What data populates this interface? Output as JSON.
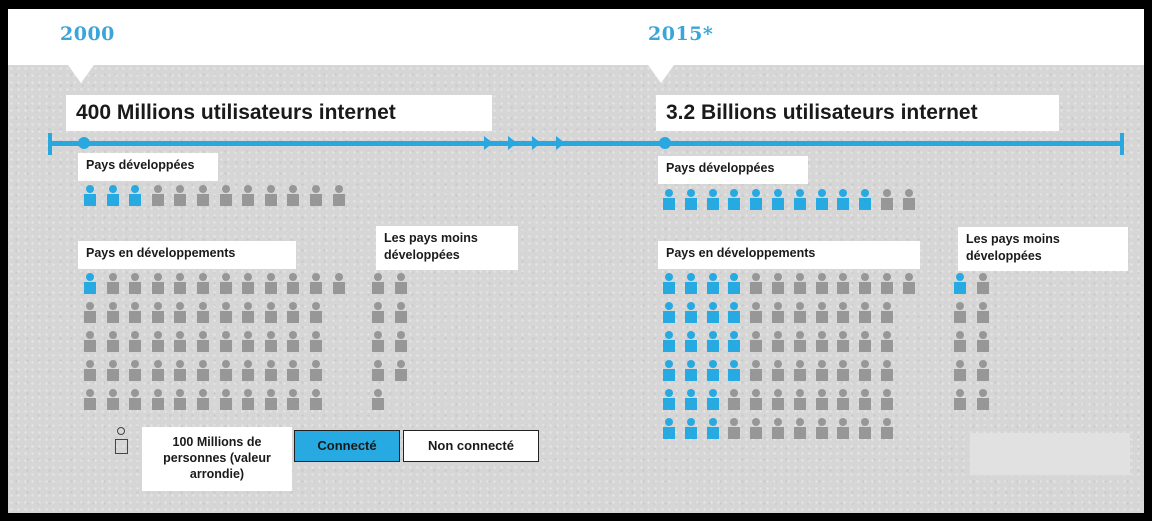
{
  "years": {
    "left": "2000",
    "right": "2015*"
  },
  "headlines": {
    "left": "400 Millions utilisateurs internet",
    "right": "3.2  Billions utilisateurs internet"
  },
  "colors": {
    "connected": "#27a9e1",
    "not_connected": "#979797",
    "timeline": "#29a8e0",
    "year_text": "#3aa5d8"
  },
  "categories": {
    "developed": "Pays développées",
    "developing": "Pays en développements",
    "least_developed": "Les pays moins développées"
  },
  "groups": [
    {
      "year": "2000",
      "category": "developed",
      "connected": 3,
      "total": 12
    },
    {
      "year": "2000",
      "category": "developing",
      "connected": 1,
      "total": 56
    },
    {
      "year": "2000",
      "category": "least_developed",
      "connected": 0,
      "total": 9
    },
    {
      "year": "2015*",
      "category": "developed",
      "connected": 10,
      "total": 12
    },
    {
      "year": "2015*",
      "category": "developing",
      "connected": 22,
      "total": 67
    },
    {
      "year": "2015*",
      "category": "least_developed",
      "connected": 1,
      "total": 10
    }
  ],
  "legend": {
    "unit_label": "100 Millions de personnes (valeur arrondie)",
    "connected_label": "Connecté",
    "not_connected_label": "Non connecté",
    "person_icon": "person-outline-icon"
  }
}
